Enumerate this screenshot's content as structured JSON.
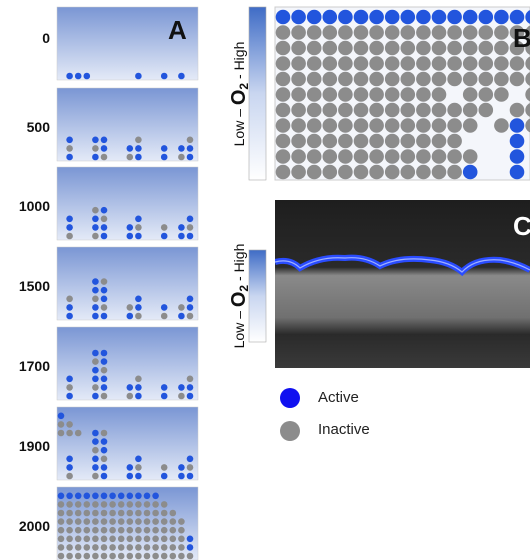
{
  "panel_labels": [
    "A",
    "B",
    "C"
  ],
  "time_labels": [
    "0",
    "500",
    "1000",
    "1500",
    "1700",
    "1900",
    "2000"
  ],
  "colorbar_label": {
    "low": "Low –",
    "o": "O",
    "sub": "2",
    "high": "- High"
  },
  "legend": {
    "active": "Active",
    "inactive": "Inactive"
  }
}
